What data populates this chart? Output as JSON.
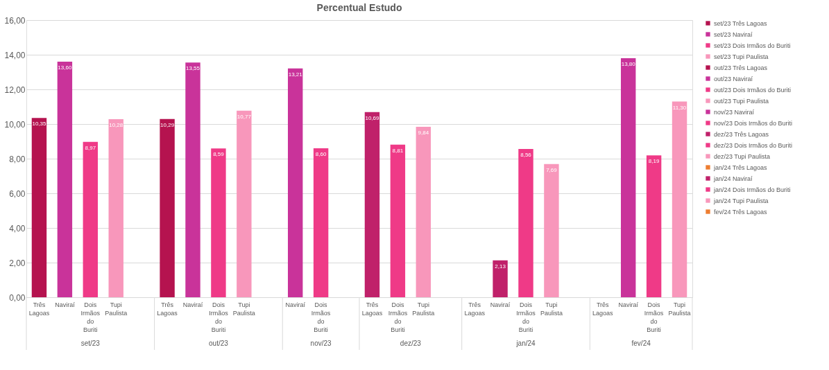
{
  "chart_data": {
    "type": "bar",
    "title": "Percentual Estudo",
    "categories": [
      "Três Lagoas",
      "Naviraí",
      "Dois Irmãos do Buriti",
      "Tupi Paulista",
      null,
      "Três Lagoas",
      "Naviraí",
      "Dois Irmãos do Buriti",
      "Tupi Paulista",
      null,
      "Naviraí",
      "Dois Irmãos do Buriti",
      null,
      "Três Lagoas",
      "Dois Irmãos do Buriti",
      "Tupi Paulista",
      null,
      "Três Lagoas",
      "Naviraí",
      "Dois Irmãos do Buriti",
      "Tupi Paulista",
      null,
      "Três Lagoas",
      "Naviraí",
      "Dois Irmãos do Buriti",
      "Tupi Paulista"
    ],
    "annotations": [
      "set/23",
      "out/23",
      "nov/23",
      "dez/23",
      "jan/24",
      "fev/24"
    ],
    "ylim": [
      0,
      16
    ],
    "yticks": [
      {
        "value": 0,
        "label": "0,00"
      },
      {
        "value": 2,
        "label": "2,00"
      },
      {
        "value": 4,
        "label": "4,00"
      },
      {
        "value": 6,
        "label": "6,00"
      },
      {
        "value": 8,
        "label": "8,00"
      },
      {
        "value": 10,
        "label": "10,00"
      },
      {
        "value": 12,
        "label": "12,00"
      },
      {
        "value": 14,
        "label": "14,00"
      },
      {
        "value": 16,
        "label": "16,00"
      }
    ],
    "grid": "y",
    "legend": "right",
    "series": [
      {
        "name": "set/23 Três Lagoas",
        "color": "#b5134f",
        "values": [
          10.35,
          null,
          null,
          null,
          null,
          null,
          null,
          null,
          null,
          null,
          null,
          null,
          null,
          null,
          null,
          null,
          null,
          null,
          null,
          null,
          null,
          null,
          null,
          null,
          null,
          null
        ],
        "value_labels": [
          "10,35",
          null,
          null,
          null,
          null,
          null,
          null,
          null,
          null,
          null,
          null,
          null,
          null,
          null,
          null,
          null,
          null,
          null,
          null,
          null,
          null,
          null,
          null,
          null,
          null,
          null
        ]
      },
      {
        "name": "set/23 Naviraí",
        "color": "#c9339a",
        "values": [
          null,
          13.6,
          null,
          null,
          null,
          null,
          null,
          null,
          null,
          null,
          null,
          null,
          null,
          null,
          null,
          null,
          null,
          null,
          null,
          null,
          null,
          null,
          null,
          null,
          null,
          null
        ],
        "value_labels": [
          null,
          "13,60",
          null,
          null,
          null,
          null,
          null,
          null,
          null,
          null,
          null,
          null,
          null,
          null,
          null,
          null,
          null,
          null,
          null,
          null,
          null,
          null,
          null,
          null,
          null,
          null
        ]
      },
      {
        "name": "set/23 Dois Irmãos do Buriti",
        "color": "#ef3a87",
        "values": [
          null,
          null,
          8.97,
          null,
          null,
          null,
          null,
          null,
          null,
          null,
          null,
          null,
          null,
          null,
          null,
          null,
          null,
          null,
          null,
          null,
          null,
          null,
          null,
          null,
          null,
          null
        ],
        "value_labels": [
          null,
          null,
          "8,97",
          null,
          null,
          null,
          null,
          null,
          null,
          null,
          null,
          null,
          null,
          null,
          null,
          null,
          null,
          null,
          null,
          null,
          null,
          null,
          null,
          null,
          null,
          null
        ]
      },
      {
        "name": "set/23 Tupi Paulista",
        "color": "#f897bb",
        "values": [
          null,
          null,
          null,
          10.28,
          null,
          null,
          null,
          null,
          null,
          null,
          null,
          null,
          null,
          null,
          null,
          null,
          null,
          null,
          null,
          null,
          null,
          null,
          null,
          null,
          null,
          null
        ],
        "value_labels": [
          null,
          null,
          null,
          "10,28",
          null,
          null,
          null,
          null,
          null,
          null,
          null,
          null,
          null,
          null,
          null,
          null,
          null,
          null,
          null,
          null,
          null,
          null,
          null,
          null,
          null,
          null
        ]
      },
      {
        "name": "out/23 Três Lagoas",
        "color": "#b5134f",
        "values": [
          null,
          null,
          null,
          null,
          null,
          10.29,
          null,
          null,
          null,
          null,
          null,
          null,
          null,
          null,
          null,
          null,
          null,
          null,
          null,
          null,
          null,
          null,
          null,
          null,
          null,
          null
        ],
        "value_labels": [
          null,
          null,
          null,
          null,
          null,
          "10,29",
          null,
          null,
          null,
          null,
          null,
          null,
          null,
          null,
          null,
          null,
          null,
          null,
          null,
          null,
          null,
          null,
          null,
          null,
          null,
          null
        ]
      },
      {
        "name": "out/23 Naviraí",
        "color": "#c9339a",
        "values": [
          null,
          null,
          null,
          null,
          null,
          null,
          13.55,
          null,
          null,
          null,
          null,
          null,
          null,
          null,
          null,
          null,
          null,
          null,
          null,
          null,
          null,
          null,
          null,
          null,
          null,
          null
        ],
        "value_labels": [
          null,
          null,
          null,
          null,
          null,
          null,
          "13,55",
          null,
          null,
          null,
          null,
          null,
          null,
          null,
          null,
          null,
          null,
          null,
          null,
          null,
          null,
          null,
          null,
          null,
          null,
          null
        ]
      },
      {
        "name": "out/23 Dois Irmãos do Buriti",
        "color": "#ef3a87",
        "values": [
          null,
          null,
          null,
          null,
          null,
          null,
          null,
          8.59,
          null,
          null,
          null,
          null,
          null,
          null,
          null,
          null,
          null,
          null,
          null,
          null,
          null,
          null,
          null,
          null,
          null,
          null
        ],
        "value_labels": [
          null,
          null,
          null,
          null,
          null,
          null,
          null,
          "8,59",
          null,
          null,
          null,
          null,
          null,
          null,
          null,
          null,
          null,
          null,
          null,
          null,
          null,
          null,
          null,
          null,
          null,
          null
        ]
      },
      {
        "name": "out/23 Tupi Paulista",
        "color": "#f897bb",
        "values": [
          null,
          null,
          null,
          null,
          null,
          null,
          null,
          null,
          10.77,
          null,
          null,
          null,
          null,
          null,
          null,
          null,
          null,
          null,
          null,
          null,
          null,
          null,
          null,
          null,
          null,
          null
        ],
        "value_labels": [
          null,
          null,
          null,
          null,
          null,
          null,
          null,
          null,
          "10,77",
          null,
          null,
          null,
          null,
          null,
          null,
          null,
          null,
          null,
          null,
          null,
          null,
          null,
          null,
          null,
          null,
          null
        ]
      },
      {
        "name": "nov/23 Naviraí",
        "color": "#c9339a",
        "values": [
          null,
          null,
          null,
          null,
          null,
          null,
          null,
          null,
          null,
          null,
          13.21,
          null,
          null,
          null,
          null,
          null,
          null,
          null,
          null,
          null,
          null,
          null,
          null,
          null,
          null,
          null
        ],
        "value_labels": [
          null,
          null,
          null,
          null,
          null,
          null,
          null,
          null,
          null,
          null,
          "13,21",
          null,
          null,
          null,
          null,
          null,
          null,
          null,
          null,
          null,
          null,
          null,
          null,
          null,
          null,
          null
        ]
      },
      {
        "name": "nov/23 Dois Irmãos do Buriti",
        "color": "#ef3a87",
        "values": [
          null,
          null,
          null,
          null,
          null,
          null,
          null,
          null,
          null,
          null,
          null,
          8.6,
          null,
          null,
          null,
          null,
          null,
          null,
          null,
          null,
          null,
          null,
          null,
          null,
          null,
          null
        ],
        "value_labels": [
          null,
          null,
          null,
          null,
          null,
          null,
          null,
          null,
          null,
          null,
          null,
          "8,60",
          null,
          null,
          null,
          null,
          null,
          null,
          null,
          null,
          null,
          null,
          null,
          null,
          null,
          null
        ]
      },
      {
        "name": "dez/23 Três Lagoas",
        "color": "#c0216a",
        "values": [
          null,
          null,
          null,
          null,
          null,
          null,
          null,
          null,
          null,
          null,
          null,
          null,
          null,
          10.69,
          null,
          null,
          null,
          null,
          null,
          null,
          null,
          null,
          null,
          null,
          null,
          null
        ],
        "value_labels": [
          null,
          null,
          null,
          null,
          null,
          null,
          null,
          null,
          null,
          null,
          null,
          null,
          null,
          "10,69",
          null,
          null,
          null,
          null,
          null,
          null,
          null,
          null,
          null,
          null,
          null,
          null
        ]
      },
      {
        "name": "dez/23 Dois Irmãos do Buriti",
        "color": "#ef3a87",
        "values": [
          null,
          null,
          null,
          null,
          null,
          null,
          null,
          null,
          null,
          null,
          null,
          null,
          null,
          null,
          8.81,
          null,
          null,
          null,
          null,
          null,
          null,
          null,
          null,
          null,
          null,
          null
        ],
        "value_labels": [
          null,
          null,
          null,
          null,
          null,
          null,
          null,
          null,
          null,
          null,
          null,
          null,
          null,
          null,
          "8,81",
          null,
          null,
          null,
          null,
          null,
          null,
          null,
          null,
          null,
          null,
          null
        ]
      },
      {
        "name": "dez/23 Tupi Paulista",
        "color": "#f897bb",
        "values": [
          null,
          null,
          null,
          null,
          null,
          null,
          null,
          null,
          null,
          null,
          null,
          null,
          null,
          null,
          null,
          9.84,
          null,
          null,
          null,
          null,
          null,
          null,
          null,
          null,
          null,
          null
        ],
        "value_labels": [
          null,
          null,
          null,
          null,
          null,
          null,
          null,
          null,
          null,
          null,
          null,
          null,
          null,
          null,
          null,
          "9,84",
          null,
          null,
          null,
          null,
          null,
          null,
          null,
          null,
          null,
          null
        ]
      },
      {
        "name": "jan/24 Três Lagoas",
        "color": "#ed7d31",
        "values": [
          null,
          null,
          null,
          null,
          null,
          null,
          null,
          null,
          null,
          null,
          null,
          null,
          null,
          null,
          null,
          null,
          null,
          null,
          null,
          null,
          null,
          null,
          null,
          null,
          null,
          null
        ]
      },
      {
        "name": "jan/24 Naviraí",
        "color": "#c0216a",
        "values": [
          null,
          null,
          null,
          null,
          null,
          null,
          null,
          null,
          null,
          null,
          null,
          null,
          null,
          null,
          null,
          null,
          null,
          null,
          2.13,
          null,
          null,
          null,
          null,
          null,
          null,
          null
        ],
        "value_labels": [
          null,
          null,
          null,
          null,
          null,
          null,
          null,
          null,
          null,
          null,
          null,
          null,
          null,
          null,
          null,
          null,
          null,
          null,
          "2,13",
          null,
          null,
          null,
          null,
          null,
          null,
          null
        ]
      },
      {
        "name": "jan/24 Dois Irmãos do Buriti",
        "color": "#ef3a87",
        "values": [
          null,
          null,
          null,
          null,
          null,
          null,
          null,
          null,
          null,
          null,
          null,
          null,
          null,
          null,
          null,
          null,
          null,
          null,
          null,
          8.56,
          null,
          null,
          null,
          null,
          null,
          null
        ],
        "value_labels": [
          null,
          null,
          null,
          null,
          null,
          null,
          null,
          null,
          null,
          null,
          null,
          null,
          null,
          null,
          null,
          null,
          null,
          null,
          null,
          "8,56",
          null,
          null,
          null,
          null,
          null,
          null
        ]
      },
      {
        "name": "jan/24 Tupi Paulista",
        "color": "#f897bb",
        "values": [
          null,
          null,
          null,
          null,
          null,
          null,
          null,
          null,
          null,
          null,
          null,
          null,
          null,
          null,
          null,
          null,
          null,
          null,
          null,
          null,
          7.69,
          null,
          null,
          null,
          null,
          null
        ],
        "value_labels": [
          null,
          null,
          null,
          null,
          null,
          null,
          null,
          null,
          null,
          null,
          null,
          null,
          null,
          null,
          null,
          null,
          null,
          null,
          null,
          null,
          "7,69",
          null,
          null,
          null,
          null,
          null
        ]
      },
      {
        "name": "fev/24 Três Lagoas",
        "color": "#ed7d31",
        "values": [
          null,
          null,
          null,
          null,
          null,
          null,
          null,
          null,
          null,
          null,
          null,
          null,
          null,
          null,
          null,
          null,
          null,
          null,
          null,
          null,
          null,
          null,
          null,
          null,
          null,
          null
        ]
      },
      {
        "color": "#c9339a",
        "values": [
          null,
          null,
          null,
          null,
          null,
          null,
          null,
          null,
          null,
          null,
          null,
          null,
          null,
          null,
          null,
          null,
          null,
          null,
          null,
          null,
          null,
          null,
          null,
          13.8,
          null,
          null
        ],
        "value_labels": [
          null,
          null,
          null,
          null,
          null,
          null,
          null,
          null,
          null,
          null,
          null,
          null,
          null,
          null,
          null,
          null,
          null,
          null,
          null,
          null,
          null,
          null,
          null,
          "13,80",
          null,
          null
        ]
      },
      {
        "color": "#ef3a87",
        "values": [
          null,
          null,
          null,
          null,
          null,
          null,
          null,
          null,
          null,
          null,
          null,
          null,
          null,
          null,
          null,
          null,
          null,
          null,
          null,
          null,
          null,
          null,
          null,
          null,
          8.19,
          null
        ],
        "value_labels": [
          null,
          null,
          null,
          null,
          null,
          null,
          null,
          null,
          null,
          null,
          null,
          null,
          null,
          null,
          null,
          null,
          null,
          null,
          null,
          null,
          null,
          null,
          null,
          null,
          "8,19",
          null
        ]
      },
      {
        "color": "#f897bb",
        "values": [
          null,
          null,
          null,
          null,
          null,
          null,
          null,
          null,
          null,
          null,
          null,
          null,
          null,
          null,
          null,
          null,
          null,
          null,
          null,
          null,
          null,
          null,
          null,
          null,
          null,
          11.3
        ],
        "value_labels": [
          null,
          null,
          null,
          null,
          null,
          null,
          null,
          null,
          null,
          null,
          null,
          null,
          null,
          null,
          null,
          null,
          null,
          null,
          null,
          null,
          null,
          null,
          null,
          null,
          null,
          "11,30"
        ]
      }
    ]
  }
}
